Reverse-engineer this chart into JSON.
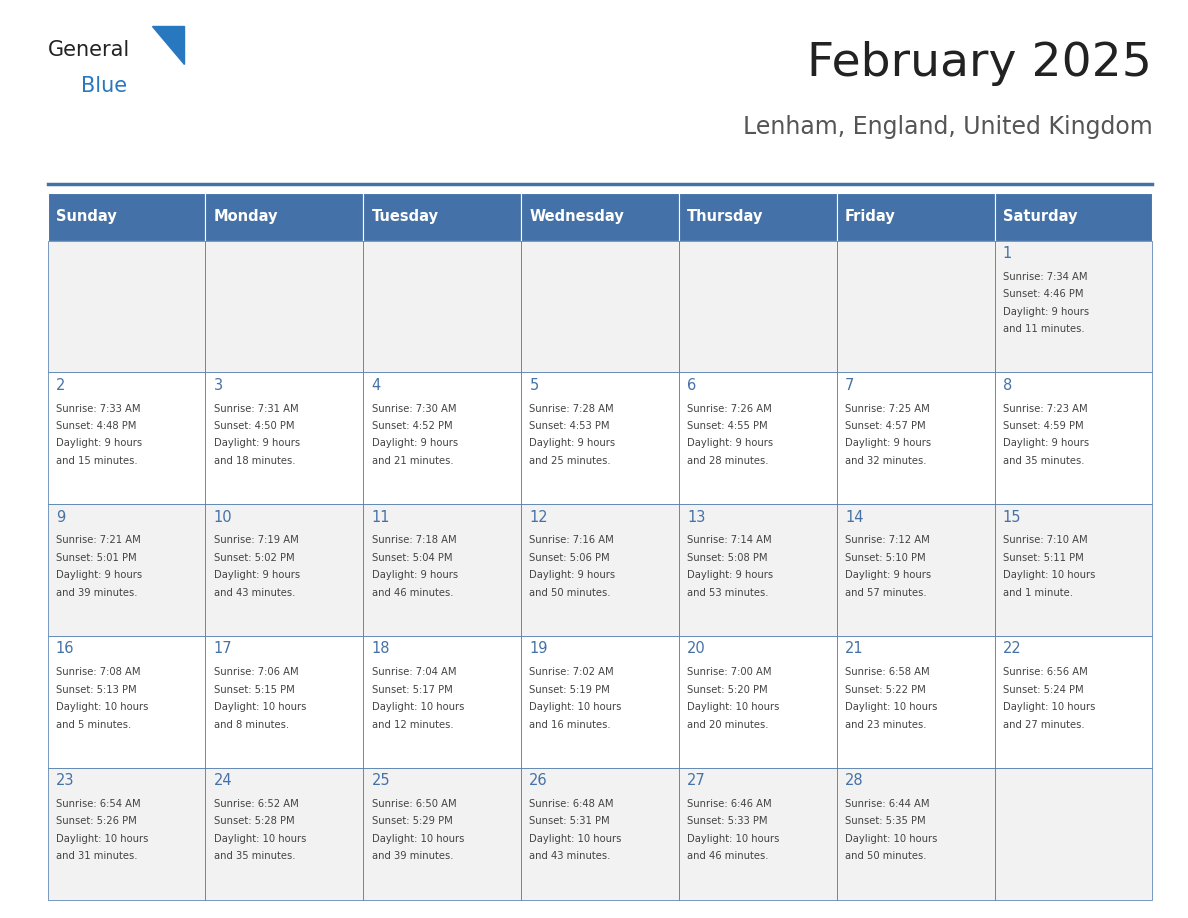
{
  "title": "February 2025",
  "subtitle": "Lenham, England, United Kingdom",
  "days_of_week": [
    "Sunday",
    "Monday",
    "Tuesday",
    "Wednesday",
    "Thursday",
    "Friday",
    "Saturday"
  ],
  "header_bg": "#4472a8",
  "header_text": "#ffffff",
  "cell_bg_odd": "#f2f2f2",
  "cell_bg_even": "#ffffff",
  "cell_border": "#4472a8",
  "day_number_color": "#4472a8",
  "info_text_color": "#444444",
  "bg_color": "#ffffff",
  "logo_general_color": "#222222",
  "logo_blue_color": "#2878c0",
  "title_color": "#222222",
  "subtitle_color": "#555555",
  "calendar_data": [
    [
      null,
      null,
      null,
      null,
      null,
      null,
      {
        "day": 1,
        "sunrise": "7:34 AM",
        "sunset": "4:46 PM",
        "daylight": "9 hours and 11 minutes."
      }
    ],
    [
      {
        "day": 2,
        "sunrise": "7:33 AM",
        "sunset": "4:48 PM",
        "daylight": "9 hours and 15 minutes."
      },
      {
        "day": 3,
        "sunrise": "7:31 AM",
        "sunset": "4:50 PM",
        "daylight": "9 hours and 18 minutes."
      },
      {
        "day": 4,
        "sunrise": "7:30 AM",
        "sunset": "4:52 PM",
        "daylight": "9 hours and 21 minutes."
      },
      {
        "day": 5,
        "sunrise": "7:28 AM",
        "sunset": "4:53 PM",
        "daylight": "9 hours and 25 minutes."
      },
      {
        "day": 6,
        "sunrise": "7:26 AM",
        "sunset": "4:55 PM",
        "daylight": "9 hours and 28 minutes."
      },
      {
        "day": 7,
        "sunrise": "7:25 AM",
        "sunset": "4:57 PM",
        "daylight": "9 hours and 32 minutes."
      },
      {
        "day": 8,
        "sunrise": "7:23 AM",
        "sunset": "4:59 PM",
        "daylight": "9 hours and 35 minutes."
      }
    ],
    [
      {
        "day": 9,
        "sunrise": "7:21 AM",
        "sunset": "5:01 PM",
        "daylight": "9 hours and 39 minutes."
      },
      {
        "day": 10,
        "sunrise": "7:19 AM",
        "sunset": "5:02 PM",
        "daylight": "9 hours and 43 minutes."
      },
      {
        "day": 11,
        "sunrise": "7:18 AM",
        "sunset": "5:04 PM",
        "daylight": "9 hours and 46 minutes."
      },
      {
        "day": 12,
        "sunrise": "7:16 AM",
        "sunset": "5:06 PM",
        "daylight": "9 hours and 50 minutes."
      },
      {
        "day": 13,
        "sunrise": "7:14 AM",
        "sunset": "5:08 PM",
        "daylight": "9 hours and 53 minutes."
      },
      {
        "day": 14,
        "sunrise": "7:12 AM",
        "sunset": "5:10 PM",
        "daylight": "9 hours and 57 minutes."
      },
      {
        "day": 15,
        "sunrise": "7:10 AM",
        "sunset": "5:11 PM",
        "daylight": "10 hours and 1 minute."
      }
    ],
    [
      {
        "day": 16,
        "sunrise": "7:08 AM",
        "sunset": "5:13 PM",
        "daylight": "10 hours and 5 minutes."
      },
      {
        "day": 17,
        "sunrise": "7:06 AM",
        "sunset": "5:15 PM",
        "daylight": "10 hours and 8 minutes."
      },
      {
        "day": 18,
        "sunrise": "7:04 AM",
        "sunset": "5:17 PM",
        "daylight": "10 hours and 12 minutes."
      },
      {
        "day": 19,
        "sunrise": "7:02 AM",
        "sunset": "5:19 PM",
        "daylight": "10 hours and 16 minutes."
      },
      {
        "day": 20,
        "sunrise": "7:00 AM",
        "sunset": "5:20 PM",
        "daylight": "10 hours and 20 minutes."
      },
      {
        "day": 21,
        "sunrise": "6:58 AM",
        "sunset": "5:22 PM",
        "daylight": "10 hours and 23 minutes."
      },
      {
        "day": 22,
        "sunrise": "6:56 AM",
        "sunset": "5:24 PM",
        "daylight": "10 hours and 27 minutes."
      }
    ],
    [
      {
        "day": 23,
        "sunrise": "6:54 AM",
        "sunset": "5:26 PM",
        "daylight": "10 hours and 31 minutes."
      },
      {
        "day": 24,
        "sunrise": "6:52 AM",
        "sunset": "5:28 PM",
        "daylight": "10 hours and 35 minutes."
      },
      {
        "day": 25,
        "sunrise": "6:50 AM",
        "sunset": "5:29 PM",
        "daylight": "10 hours and 39 minutes."
      },
      {
        "day": 26,
        "sunrise": "6:48 AM",
        "sunset": "5:31 PM",
        "daylight": "10 hours and 43 minutes."
      },
      {
        "day": 27,
        "sunrise": "6:46 AM",
        "sunset": "5:33 PM",
        "daylight": "10 hours and 46 minutes."
      },
      {
        "day": 28,
        "sunrise": "6:44 AM",
        "sunset": "5:35 PM",
        "daylight": "10 hours and 50 minutes."
      },
      null
    ]
  ]
}
